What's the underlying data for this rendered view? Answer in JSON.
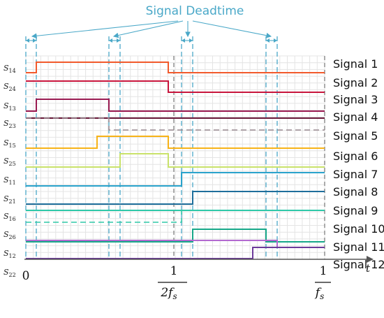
{
  "title": "Signal Deadtime",
  "axis": {
    "origin": "0",
    "half_numerator": "1",
    "half_denominator": "2f",
    "half_sub": "s",
    "end_numerator": "1",
    "end_denominator": "f",
    "end_sub": "s",
    "t": "t"
  },
  "signals": [
    {
      "label": "Signal 1",
      "switch": "S",
      "sub": "14",
      "color": "#f25a2c"
    },
    {
      "label": "Signal 2",
      "switch": "S",
      "sub": "24",
      "color": "#c8153c"
    },
    {
      "label": "Signal 3",
      "switch": "S",
      "sub": "13",
      "color": "#9a1b52"
    },
    {
      "label": "Signal 4",
      "switch": "S",
      "sub": "23",
      "color": "#6a1a3a"
    },
    {
      "label": "Signal 5",
      "switch": "S",
      "sub": "15",
      "color": "#f7b318"
    },
    {
      "label": "Signal 6",
      "switch": "S",
      "sub": "25",
      "color": "#c9e26a"
    },
    {
      "label": "Signal 7",
      "switch": "S",
      "sub": "11",
      "color": "#2aa3cc"
    },
    {
      "label": "Signal 8",
      "switch": "S",
      "sub": "21",
      "color": "#1e6e9b"
    },
    {
      "label": "Signal 9",
      "switch": "S",
      "sub": "16",
      "color": "#2ec8a8"
    },
    {
      "label": "Signal 10",
      "switch": "S",
      "sub": "26",
      "color": "#17a889"
    },
    {
      "label": "Signal 11",
      "switch": "S",
      "sub": "12",
      "color": "#b36ad0"
    },
    {
      "label": "Signal 12",
      "switch": "S",
      "sub": "22",
      "color": "#6c3a9a"
    }
  ],
  "colors": {
    "deadtime": "#4aa8c8",
    "grid": "#e4e4e4",
    "axis": "#555555"
  }
}
